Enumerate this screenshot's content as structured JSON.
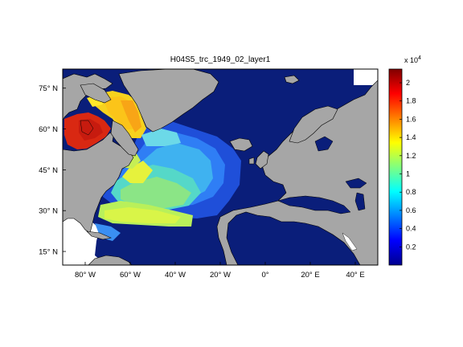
{
  "title": "H04S5_trc_1949_02_layer1",
  "map": {
    "lon_range": [
      -90,
      50
    ],
    "lat_range": [
      10,
      82
    ],
    "x_ticks": [
      {
        "lon": -80,
        "label": "80° W"
      },
      {
        "lon": -60,
        "label": "60° W"
      },
      {
        "lon": -40,
        "label": "40° W"
      },
      {
        "lon": -20,
        "label": "20° W"
      },
      {
        "lon": 0,
        "label": "0°"
      },
      {
        "lon": 20,
        "label": "20° E"
      },
      {
        "lon": 40,
        "label": "40° E"
      }
    ],
    "y_ticks": [
      {
        "lat": 75,
        "label": "75° N"
      },
      {
        "lat": 60,
        "label": "60° N"
      },
      {
        "lat": 45,
        "label": "45° N"
      },
      {
        "lat": 30,
        "label": "30° N"
      },
      {
        "lat": 15,
        "label": "15° N"
      }
    ],
    "colors": {
      "ocean_background": "#0a1e7a",
      "land": "#a6a6a6",
      "coast": "#000000",
      "missing": "#ffffff"
    }
  },
  "colorbar": {
    "colormap": "jet",
    "range": [
      0,
      21500
    ],
    "multiplier_label": "x 10",
    "multiplier_exponent": "4",
    "ticks": [
      {
        "value": 0.2,
        "label": "0.2"
      },
      {
        "value": 0.4,
        "label": "0.4"
      },
      {
        "value": 0.6,
        "label": "0.6"
      },
      {
        "value": 0.8,
        "label": "0.8"
      },
      {
        "value": 1.0,
        "label": "1"
      },
      {
        "value": 1.2,
        "label": "1.2"
      },
      {
        "value": 1.4,
        "label": "1.4"
      },
      {
        "value": 1.6,
        "label": "1.6"
      },
      {
        "value": 1.8,
        "label": "1.8"
      },
      {
        "value": 2.0,
        "label": "2"
      }
    ]
  }
}
